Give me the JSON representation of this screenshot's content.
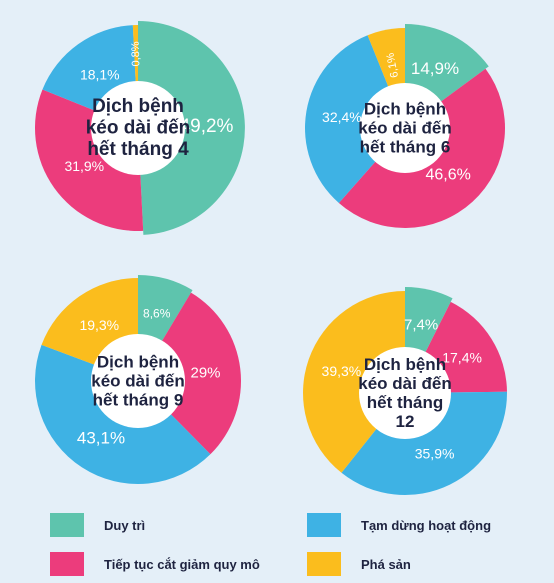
{
  "colors": {
    "maintain": "#5ec4ad",
    "reduce": "#ec3c7c",
    "pause": "#3eb2e4",
    "bankrupt": "#fbbd1d",
    "background": "#e4eff8",
    "center": "#ffffff",
    "center_text": "#1e2340"
  },
  "legend": [
    {
      "key": "maintain",
      "label": "Duy trì"
    },
    {
      "key": "pause",
      "label": "Tạm dừng hoạt động"
    },
    {
      "key": "reduce",
      "label": "Tiếp tục cắt giảm quy mô"
    },
    {
      "key": "bankrupt",
      "label": "Phá sản"
    }
  ],
  "chart_data": [
    {
      "type": "pie",
      "center_label": [
        "Dịch bệnh",
        "kéo dài đến",
        "hết tháng 4"
      ],
      "slices": [
        {
          "key": "maintain",
          "value": 49.2,
          "label": "49,2%",
          "exploded": true
        },
        {
          "key": "reduce",
          "value": 31.9,
          "label": "31,9%"
        },
        {
          "key": "pause",
          "value": 18.1,
          "label": "18,1%"
        },
        {
          "key": "bankrupt",
          "value": 0.8,
          "label": "0,8%"
        }
      ]
    },
    {
      "type": "pie",
      "center_label": [
        "Dịch bệnh",
        "kéo dài đến",
        "hết tháng 6"
      ],
      "slices": [
        {
          "key": "maintain",
          "value": 14.9,
          "label": "14,9%",
          "exploded": true
        },
        {
          "key": "reduce",
          "value": 46.6,
          "label": "46,6%"
        },
        {
          "key": "pause",
          "value": 32.4,
          "label": "32,4%"
        },
        {
          "key": "bankrupt",
          "value": 6.1,
          "label": "6,1%"
        }
      ]
    },
    {
      "type": "pie",
      "center_label": [
        "Dịch bệnh",
        "kéo dài đến",
        "hết tháng 9"
      ],
      "slices": [
        {
          "key": "maintain",
          "value": 8.6,
          "label": "8,6%",
          "exploded": true
        },
        {
          "key": "reduce",
          "value": 29.0,
          "label": "29%"
        },
        {
          "key": "pause",
          "value": 43.1,
          "label": "43,1%"
        },
        {
          "key": "bankrupt",
          "value": 19.3,
          "label": "19,3%"
        }
      ]
    },
    {
      "type": "pie",
      "center_label": [
        "Dịch bệnh",
        "kéo dài đến",
        "hết tháng",
        "12"
      ],
      "slices": [
        {
          "key": "maintain",
          "value": 7.4,
          "label": "7,4%",
          "exploded": true
        },
        {
          "key": "reduce",
          "value": 17.4,
          "label": "17,4%"
        },
        {
          "key": "pause",
          "value": 35.9,
          "label": "35,9%"
        },
        {
          "key": "bankrupt",
          "value": 39.3,
          "label": "39,3%"
        }
      ]
    }
  ]
}
